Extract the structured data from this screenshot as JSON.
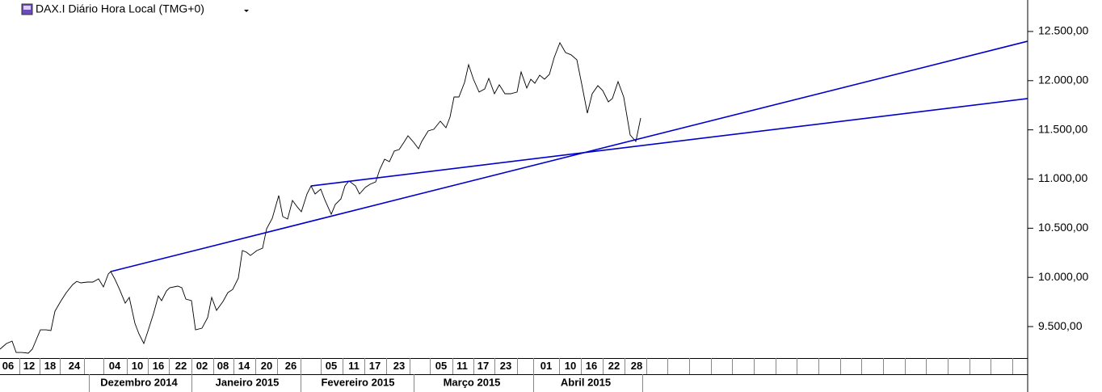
{
  "chart_data": {
    "type": "line",
    "title": "DAX.I Diário Hora Local (TMG+0)",
    "xlim": [
      0,
      254.4
    ],
    "ylim": [
      9180,
      12820
    ],
    "yticks": [
      {
        "value": 9500,
        "label": "9.500,00"
      },
      {
        "value": 10000,
        "label": "10.000,00"
      },
      {
        "value": 10500,
        "label": "10.500,00"
      },
      {
        "value": 11000,
        "label": "11.000,00"
      },
      {
        "value": 11500,
        "label": "11.500,00"
      },
      {
        "value": 12000,
        "label": "12.000,00"
      },
      {
        "value": 12500,
        "label": "12.500,00"
      }
    ],
    "date_labels": [
      {
        "value": 2,
        "label": "06"
      },
      {
        "value": 7.2,
        "label": "12"
      },
      {
        "value": 12.4,
        "label": "18"
      },
      {
        "value": 18.4,
        "label": "24"
      },
      {
        "value": 28.4,
        "label": "04"
      },
      {
        "value": 34,
        "label": "10"
      },
      {
        "value": 39.2,
        "label": "16"
      },
      {
        "value": 44.8,
        "label": "22"
      },
      {
        "value": 50,
        "label": "02"
      },
      {
        "value": 55.2,
        "label": "08"
      },
      {
        "value": 60.4,
        "label": "14"
      },
      {
        "value": 66,
        "label": "20"
      },
      {
        "value": 72,
        "label": "26"
      },
      {
        "value": 82,
        "label": "05"
      },
      {
        "value": 87.6,
        "label": "11"
      },
      {
        "value": 92.8,
        "label": "17"
      },
      {
        "value": 98.8,
        "label": "23"
      },
      {
        "value": 109.2,
        "label": "05"
      },
      {
        "value": 114.4,
        "label": "11"
      },
      {
        "value": 119.6,
        "label": "17"
      },
      {
        "value": 125.2,
        "label": "23"
      },
      {
        "value": 135.2,
        "label": "01"
      },
      {
        "value": 141.2,
        "label": "10"
      },
      {
        "value": 146.4,
        "label": "16"
      },
      {
        "value": 152,
        "label": "22"
      },
      {
        "value": 157.6,
        "label": "28"
      }
    ],
    "month_labels": [
      {
        "value": 34.4,
        "label": "Dezembro 2014"
      },
      {
        "value": 61.2,
        "label": "Janeiro 2015"
      },
      {
        "value": 88.6,
        "label": "Fevereiro 2015"
      },
      {
        "value": 116.8,
        "label": "Março 2015"
      },
      {
        "value": 145,
        "label": "Abril 2015"
      }
    ],
    "series": [
      {
        "color": "#000000",
        "x": [
          0,
          1.6,
          3,
          4,
          5.4,
          7,
          8,
          9,
          10,
          11.4,
          12.6,
          13.6,
          15,
          16.4,
          18,
          19,
          20,
          21.6,
          23,
          24.4,
          25.6,
          26.8,
          27.4,
          28.4,
          29.6,
          31,
          32,
          33.4,
          34.4,
          35.6,
          36.6,
          38,
          39.2,
          40,
          41.2,
          42,
          44,
          45,
          46,
          47.4,
          48.4,
          50,
          51.4,
          52.4,
          53.6,
          55.2,
          56.4,
          57.6,
          59,
          60,
          61,
          62,
          63.6,
          65,
          66,
          67.4,
          69,
          70,
          71.2,
          72.4,
          73.6,
          74.6,
          76,
          77,
          78,
          79.4,
          80.4,
          82,
          83,
          84.4,
          85.4,
          86.4,
          88,
          89,
          90.4,
          91.6,
          93,
          94,
          95.2,
          96.4,
          97.6,
          98.8,
          100,
          101,
          102.4,
          103.6,
          104.4,
          106,
          107.4,
          109,
          110.4,
          111.4,
          112.4,
          113.6,
          115,
          116,
          117.2,
          118.6,
          120,
          121,
          122.4,
          123.6,
          125,
          126.4,
          128,
          129,
          130.4,
          131.4,
          132.4,
          133.6,
          134.8,
          136,
          137.2,
          138.6,
          140,
          141.4,
          142.8,
          144,
          145.4,
          146.6,
          148,
          149.2,
          150.6,
          151.6,
          153,
          154.4,
          156,
          157.4,
          158.6
        ],
        "values": [
          9270,
          9328,
          9352,
          9237,
          9237,
          9229,
          9270,
          9369,
          9467,
          9467,
          9459,
          9656,
          9755,
          9845,
          9927,
          9960,
          9944,
          9952,
          9952,
          9985,
          9903,
          10034,
          10059,
          9985,
          9878,
          9738,
          9796,
          9533,
          9426,
          9328,
          9451,
          9632,
          9812,
          9763,
          9862,
          9895,
          9911,
          9895,
          9780,
          9763,
          9467,
          9484,
          9591,
          9796,
          9665,
          9755,
          9845,
          9878,
          9993,
          10273,
          10256,
          10223,
          10273,
          10297,
          10495,
          10601,
          10832,
          10618,
          10593,
          10782,
          10716,
          10667,
          10848,
          10930,
          10848,
          10897,
          10790,
          10642,
          10741,
          10799,
          10930,
          10980,
          10930,
          10848,
          10914,
          10947,
          10971,
          11095,
          11201,
          11177,
          11284,
          11300,
          11374,
          11440,
          11374,
          11308,
          11382,
          11489,
          11506,
          11588,
          11522,
          11629,
          11834,
          11834,
          11982,
          12163,
          12015,
          11884,
          11916,
          12023,
          11867,
          11958,
          11867,
          11867,
          11884,
          12089,
          11925,
          12015,
          11974,
          12056,
          12015,
          12064,
          12237,
          12385,
          12286,
          12262,
          12212,
          11966,
          11670,
          11867,
          11949,
          11900,
          11785,
          11818,
          11990,
          11834,
          11448,
          11382,
          11620
        ]
      }
    ],
    "trendlines": [
      {
        "color": "#0000cc",
        "x": [
          27.4,
          254.4
        ],
        "y": [
          10059,
          12401
        ]
      },
      {
        "color": "#0000cc",
        "x": [
          77,
          254.4
        ],
        "y": [
          10930,
          11818
        ]
      }
    ]
  }
}
